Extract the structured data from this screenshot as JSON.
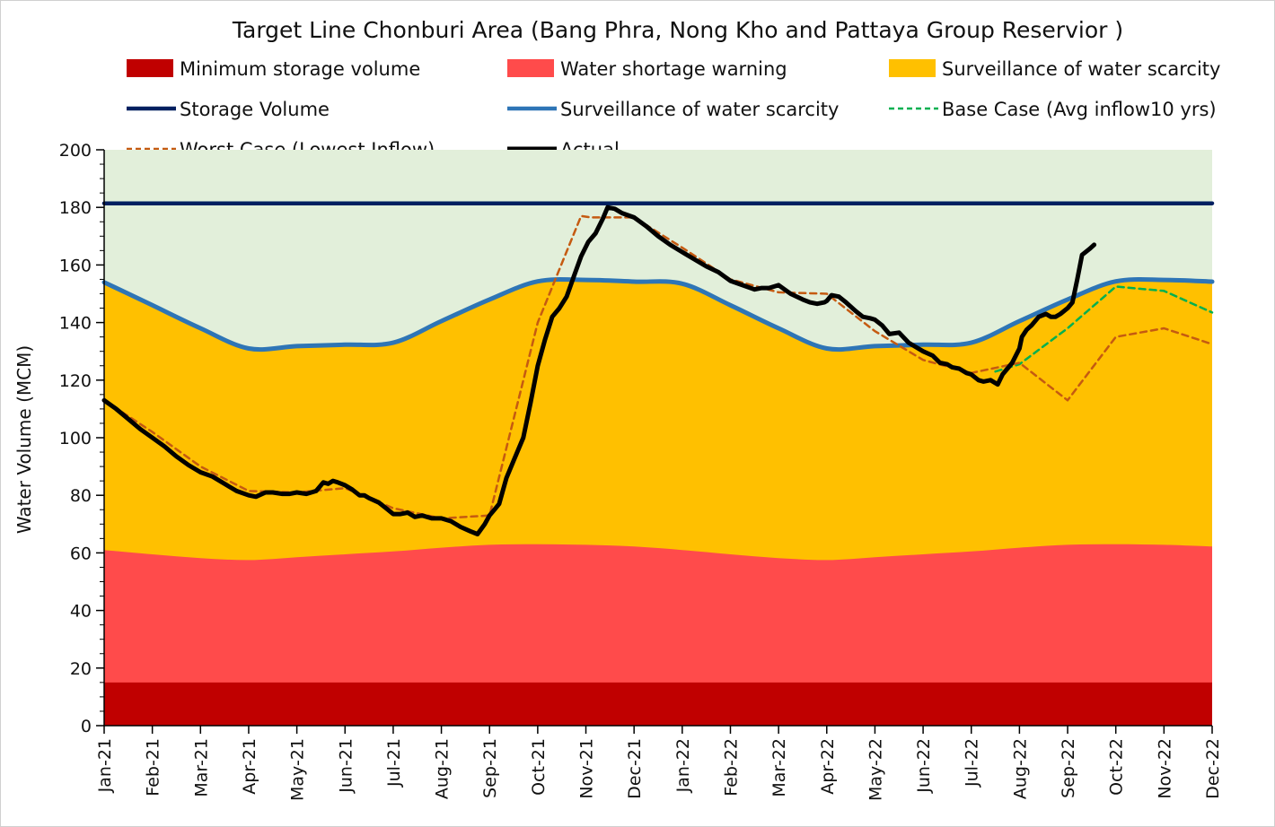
{
  "chart_data": {
    "type": "area",
    "title": "Target Line Chonburi Area (Bang Phra, Nong Kho and Pattaya Group Reservior )",
    "xlabel": "",
    "ylabel": "Water Volume (MCM)",
    "ylim": [
      0,
      200
    ],
    "yticks": [
      0,
      20,
      40,
      60,
      80,
      100,
      120,
      140,
      160,
      180,
      200
    ],
    "grid": false,
    "legend_position": "top",
    "categories": [
      "Jan-21",
      "Feb-21",
      "Mar-21",
      "Apr-21",
      "May-21",
      "Jun-21",
      "Jul-21",
      "Aug-21",
      "Sep-21",
      "Oct-21",
      "Nov-21",
      "Dec-21",
      "Jan-22",
      "Feb-22",
      "Mar-22",
      "Apr-22",
      "May-22",
      "Jun-22",
      "Jul-22",
      "Aug-22",
      "Sep-22",
      "Oct-22",
      "Nov-22",
      "Dec-22"
    ],
    "background_zone": {
      "from": 0,
      "to": 200,
      "color": "#e2efda"
    },
    "series": [
      {
        "name": "Minimum storage volume",
        "kind": "area",
        "color": "#c00000",
        "values": [
          15,
          15,
          15,
          15,
          15,
          15,
          15,
          15,
          15,
          15,
          15,
          15,
          15,
          15,
          15,
          15,
          15,
          15,
          15,
          15,
          15,
          15,
          15,
          15
        ]
      },
      {
        "name": "Water shortage warning",
        "kind": "area",
        "color": "#ff4b4b",
        "values": [
          61,
          59.5,
          58.2,
          57.5,
          58.5,
          59.5,
          60.5,
          61.8,
          62.8,
          63,
          62.8,
          62.2,
          61,
          59.5,
          58.2,
          57.5,
          58.5,
          59.5,
          60.5,
          61.8,
          62.8,
          63,
          62.8,
          62.2
        ]
      },
      {
        "name": "Surveillance of water scarcity",
        "kind": "area",
        "color": "#ffc000",
        "values": [
          154,
          146,
          138,
          131,
          131.8,
          132.3,
          133,
          140.5,
          148,
          154.3,
          154.8,
          154.2,
          153.5,
          146,
          138,
          131,
          131.8,
          132.3,
          133,
          140.5,
          148,
          154.3,
          154.8,
          154.2
        ]
      },
      {
        "name": "Storage Volume",
        "kind": "line",
        "color": "#002060",
        "values": [
          181.4,
          181.4,
          181.4,
          181.4,
          181.4,
          181.4,
          181.4,
          181.4,
          181.4,
          181.4,
          181.4,
          181.4,
          181.4,
          181.4,
          181.4,
          181.4,
          181.4,
          181.4,
          181.4,
          181.4,
          181.4,
          181.4,
          181.4,
          181.4
        ]
      },
      {
        "name": "Surveillance of water scarcity",
        "kind": "line",
        "color": "#2e75b6",
        "values": [
          154,
          146,
          138,
          131,
          131.8,
          132.3,
          133,
          140.5,
          148,
          154.3,
          154.8,
          154.2,
          153.5,
          146,
          138,
          131,
          131.8,
          132.3,
          133,
          140.5,
          148,
          154.3,
          154.8,
          154.2
        ]
      },
      {
        "name": "Base Case (Avg inflow10 yrs)",
        "kind": "line",
        "style": "dashed",
        "color": "#00b050",
        "x": [
          18.5,
          19,
          20,
          21,
          22,
          23
        ],
        "values": [
          123,
          125.5,
          138,
          152.5,
          151,
          143.5
        ]
      },
      {
        "name": "Worst Case (Lowest Inflow)",
        "kind": "line",
        "style": "dashed",
        "color": "#c55a11",
        "x": [
          0,
          1,
          2,
          3,
          4,
          5,
          6,
          7,
          8,
          9,
          9.9,
          10.1,
          11,
          12,
          13,
          14,
          15,
          16,
          17,
          18,
          19,
          20,
          21,
          22,
          23
        ],
        "values": [
          113,
          102,
          90,
          81.5,
          81,
          82.5,
          75.5,
          72,
          73,
          140,
          177,
          176.5,
          176.5,
          166,
          155,
          150.5,
          150,
          137,
          127,
          122.5,
          126,
          113,
          135,
          138,
          132.5
        ]
      },
      {
        "name": "Actual",
        "kind": "line",
        "color": "#000000",
        "x": [
          0,
          0.25,
          0.5,
          0.75,
          1,
          1.25,
          1.5,
          1.75,
          2,
          2.25,
          2.5,
          2.75,
          3,
          3.15,
          3.35,
          3.5,
          3.7,
          3.85,
          4,
          4.2,
          4.4,
          4.55,
          4.65,
          4.75,
          4.85,
          5,
          5.15,
          5.3,
          5.4,
          5.5,
          5.7,
          5.85,
          6,
          6.15,
          6.3,
          6.45,
          6.6,
          6.8,
          7,
          7.2,
          7.4,
          7.6,
          7.75,
          7.9,
          8,
          8.1,
          8.2,
          8.35,
          8.5,
          8.7,
          8.85,
          9,
          9.15,
          9.3,
          9.45,
          9.6,
          9.75,
          9.9,
          10.05,
          10.2,
          10.35,
          10.45,
          10.6,
          10.75,
          11,
          11.25,
          11.5,
          11.75,
          12,
          12.25,
          12.5,
          12.75,
          13,
          13.25,
          13.5,
          13.65,
          13.8,
          14,
          14.25,
          14.5,
          14.65,
          14.8,
          14.95,
          15,
          15.1,
          15.25,
          15.4,
          15.6,
          15.75,
          15.9,
          16,
          16.15,
          16.3,
          16.5,
          16.7,
          16.9,
          17,
          17.2,
          17.35,
          17.5,
          17.6,
          17.75,
          17.9,
          18,
          18.15,
          18.25,
          18.4,
          18.55,
          18.65,
          18.75,
          18.85,
          19,
          19.05,
          19.15,
          19.25,
          19.4,
          19.55,
          19.65,
          19.75,
          19.85,
          20,
          20.1,
          20.2,
          20.3,
          20.45,
          20.55
        ],
        "values": [
          113,
          110,
          106.5,
          103,
          100,
          97,
          93.5,
          90.5,
          88,
          86.5,
          84,
          81.5,
          80,
          79.5,
          81,
          81,
          80.5,
          80.5,
          81,
          80.5,
          81.5,
          84.5,
          84,
          85,
          84.5,
          83.5,
          82,
          80,
          80,
          79,
          77.5,
          75.5,
          73.5,
          73.5,
          74,
          72.5,
          73,
          72,
          72,
          71,
          69,
          67.5,
          66.5,
          70,
          73,
          75,
          77,
          86,
          92,
          100,
          112,
          125,
          134,
          142,
          145,
          149,
          156,
          163,
          168,
          171,
          176,
          180,
          179.5,
          178,
          176.5,
          173.5,
          170,
          167,
          164.5,
          162,
          159.5,
          157.5,
          154.5,
          153,
          151.5,
          152,
          152,
          153,
          150,
          148,
          147,
          146.5,
          147,
          147.5,
          149.5,
          149,
          147,
          144,
          142,
          141.5,
          141,
          139,
          136,
          136.5,
          133,
          131,
          130,
          128.5,
          126,
          125.5,
          124.5,
          124,
          122.5,
          122,
          120,
          119.5,
          120,
          118.5,
          122,
          124,
          126,
          131,
          135,
          137.5,
          139,
          142,
          143,
          142,
          142,
          143,
          145,
          147,
          155,
          163.5,
          165.5,
          167
        ]
      }
    ],
    "legend": [
      {
        "label": "Minimum storage volume",
        "symbol": "box",
        "color": "#c00000"
      },
      {
        "label": "Water shortage warning",
        "symbol": "box",
        "color": "#ff4b4b"
      },
      {
        "label": "Surveillance of water scarcity",
        "symbol": "box",
        "color": "#ffc000"
      },
      {
        "label": "Storage Volume",
        "symbol": "line",
        "color": "#002060"
      },
      {
        "label": "Surveillance of water scarcity",
        "symbol": "line",
        "color": "#2e75b6"
      },
      {
        "label": "Base Case (Avg inflow10 yrs)",
        "symbol": "dash",
        "color": "#00b050"
      },
      {
        "label": "Worst Case (Lowest Inflow)",
        "symbol": "dash",
        "color": "#c55a11"
      },
      {
        "label": "Actual",
        "symbol": "thickline",
        "color": "#000000"
      }
    ]
  }
}
